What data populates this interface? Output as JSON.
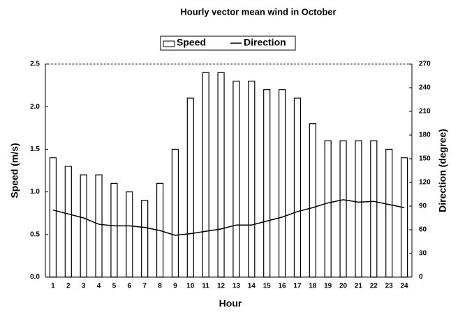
{
  "chart_data": {
    "type": "bar",
    "title": "Hourly vector mean wind in October",
    "x_label": "Hour",
    "y_label": "Speed (m/s)",
    "y2_label": "Direction (degree)",
    "categories": [
      "1",
      "2",
      "3",
      "4",
      "5",
      "6",
      "7",
      "8",
      "9",
      "10",
      "11",
      "12",
      "13",
      "14",
      "15",
      "16",
      "17",
      "18",
      "19",
      "20",
      "21",
      "22",
      "23",
      "24"
    ],
    "series": [
      {
        "name": "Speed",
        "type": "bar",
        "color": "#ffffff",
        "values": [
          1.4,
          1.3,
          1.2,
          1.2,
          1.1,
          1.0,
          0.9,
          1.1,
          1.5,
          2.1,
          2.4,
          2.4,
          2.3,
          2.3,
          2.2,
          2.2,
          2.1,
          1.8,
          1.6,
          1.6,
          1.6,
          1.6,
          1.5,
          1.4
        ]
      },
      {
        "name": "Direction",
        "type": "line",
        "axis": "y2",
        "color": "#000000",
        "values": [
          85,
          80,
          75,
          67,
          65,
          65,
          63,
          59,
          53,
          55,
          58,
          61,
          66,
          66,
          71,
          76,
          83,
          88,
          94,
          98,
          95,
          96,
          92,
          88
        ]
      }
    ],
    "ylim": [
      0,
      2.5
    ],
    "yticks": [
      {
        "value": 0,
        "label": "0.0"
      },
      0.5,
      {
        "value": 1,
        "label": "1.0"
      },
      1.5,
      {
        "value": 2,
        "label": "2.0"
      },
      2.5
    ],
    "y2lim": [
      0,
      270
    ],
    "y2ticks": [
      0,
      30,
      60,
      90,
      120,
      150,
      180,
      210,
      240,
      270
    ],
    "legend": "top",
    "grid": false
  }
}
